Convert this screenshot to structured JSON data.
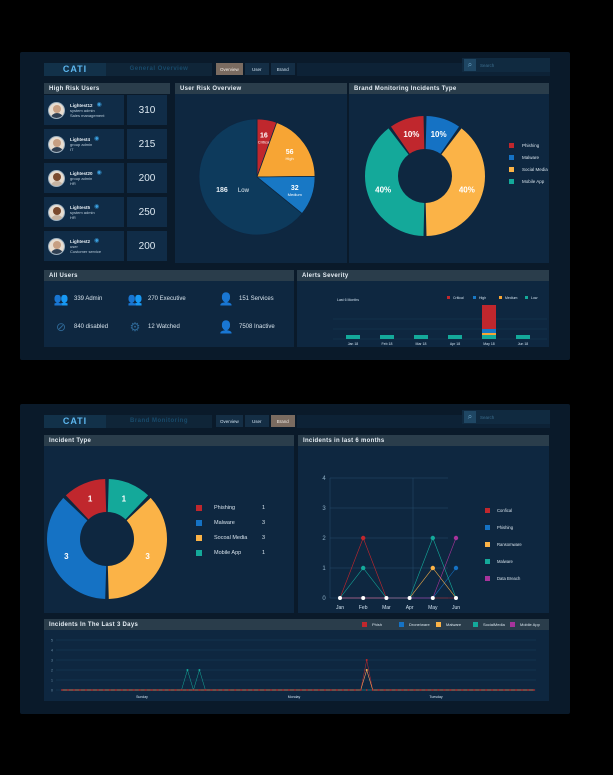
{
  "dashboard1": {
    "logo": "CATI",
    "subtitle": "General Overview",
    "tabs": [
      {
        "label": "Overview",
        "active": true
      },
      {
        "label": "User",
        "active": false
      },
      {
        "label": "Brand",
        "active": false
      }
    ],
    "search_placeholder": "Search",
    "high_risk_title": "High Risk Users",
    "users": [
      {
        "name": "Lightest12",
        "role": "system admin",
        "dept": "Sales management",
        "score": "310",
        "gender": "m"
      },
      {
        "name": "Lightest4",
        "role": "group admin",
        "dept": "IT",
        "score": "215",
        "gender": "m"
      },
      {
        "name": "Lightest20",
        "role": "group admin",
        "dept": "HR",
        "score": "200",
        "gender": "f"
      },
      {
        "name": "Lightest5",
        "role": "system admin",
        "dept": "HR",
        "score": "250",
        "gender": "f"
      },
      {
        "name": "Lightest2",
        "role": "user",
        "dept": "Customer service",
        "score": "200",
        "gender": "m"
      }
    ],
    "risk_title": "User Risk Overview",
    "risk_labels": [
      {
        "value": "16",
        "label": "Critical"
      },
      {
        "value": "56",
        "label": "High"
      },
      {
        "value": "32",
        "label": "Medium"
      },
      {
        "value": "186",
        "label": "Low"
      }
    ],
    "brand_title": "Brand Monitoring Incidents Type",
    "brand_labels": [
      "10%",
      "10%",
      "40%",
      "40%"
    ],
    "brand_legend": [
      "Phishing",
      "Malware",
      "Social Media",
      "Mobile App"
    ],
    "all_users_title": "All Users",
    "stats": [
      {
        "value": "339 Admin",
        "icon": "user-group-icon"
      },
      {
        "value": "270 Executive",
        "icon": "users-icon"
      },
      {
        "value": "151 Services",
        "icon": "service-user-icon"
      },
      {
        "value": "840 disabled",
        "icon": "disabled-user-icon"
      },
      {
        "value": "12 Watched",
        "icon": "watched-users-icon"
      },
      {
        "value": "7508 Inactive",
        "icon": "inactive-user-icon"
      }
    ],
    "alerts_title": "Alerts Severity",
    "alerts_period": "Last 6 Months",
    "alerts_legend": [
      "Critical",
      "High",
      "Medium",
      "Low"
    ],
    "alerts_months": [
      "Jan 18",
      "Feb 18",
      "Mar 18",
      "Apr 18",
      "May 18",
      "Jun 18"
    ]
  },
  "dashboard2": {
    "logo": "CATI",
    "subtitle": "Brand Monitoring",
    "tabs": [
      {
        "label": "Overview",
        "active": false
      },
      {
        "label": "User",
        "active": false
      },
      {
        "label": "Brand",
        "active": true
      }
    ],
    "search_placeholder": "Search",
    "incident_type_title": "Incident Type",
    "donut_labels": [
      "1",
      "1",
      "3",
      "3"
    ],
    "incident_legend": [
      {
        "label": "Phishing",
        "value": "1"
      },
      {
        "label": "Malware",
        "value": "3"
      },
      {
        "label": "Socoal Media",
        "value": "3"
      },
      {
        "label": "Mobile App",
        "value": "1"
      }
    ],
    "months_title": "Incidents in last 6 months",
    "months_legend": [
      "Confical",
      "Phishing",
      "Ransomware",
      "Malware",
      "Data Breach"
    ],
    "days_title": "Incidents In The Last 3 Days",
    "days_legend": [
      "Phish",
      "Drone/ware",
      "Malware",
      "SocialMedia",
      "Mobile App"
    ],
    "days_labels": [
      "Sunday",
      "Monday",
      "Tuesday"
    ]
  },
  "colors": {
    "critical": "#c0272d",
    "high": "#f7a534",
    "medium": "#1878c5",
    "low": "#0d3a5c",
    "phishing": "#c0272d",
    "malware": "#1572c4",
    "social": "#fbb347",
    "mobile": "#14a99a"
  },
  "chart_data": [
    {
      "type": "pie",
      "title": "User Risk Overview",
      "categories": [
        "Critical",
        "High",
        "Medium",
        "Low"
      ],
      "values": [
        16,
        56,
        32,
        186
      ]
    },
    {
      "type": "pie",
      "title": "Brand Monitoring Incidents Type",
      "categories": [
        "Phishing",
        "Malware",
        "Social Media",
        "Mobile App"
      ],
      "values": [
        10,
        10,
        40,
        40
      ]
    },
    {
      "type": "bar",
      "title": "Alerts Severity",
      "categories": [
        "Jan 18",
        "Feb 18",
        "Mar 18",
        "Apr 18",
        "May 18",
        "Jun 18"
      ],
      "series": [
        {
          "name": "Critical",
          "values": [
            0,
            0,
            0,
            0,
            12,
            0
          ]
        },
        {
          "name": "High",
          "values": [
            0,
            0,
            0,
            0,
            2,
            0
          ]
        },
        {
          "name": "Medium",
          "values": [
            0,
            0,
            0,
            0,
            1,
            0
          ]
        },
        {
          "name": "Low",
          "values": [
            2,
            2,
            2,
            2,
            2,
            2
          ]
        }
      ]
    },
    {
      "type": "pie",
      "title": "Incident Type",
      "categories": [
        "Phishing",
        "Malware",
        "Socoal Media",
        "Mobile App"
      ],
      "values": [
        1,
        3,
        3,
        1
      ]
    },
    {
      "type": "line",
      "title": "Incidents in last 6 months",
      "categories": [
        "Jan",
        "Feb",
        "Mar",
        "Apr",
        "May",
        "Jun"
      ],
      "ylim": [
        0,
        4
      ],
      "yticks": [
        0,
        1,
        2,
        3,
        4
      ],
      "series": [
        {
          "name": "Confical",
          "values": [
            0,
            2,
            0,
            0,
            0,
            0
          ]
        },
        {
          "name": "Phishing",
          "values": [
            0,
            0,
            0,
            0,
            0,
            1
          ]
        },
        {
          "name": "Ransomware",
          "values": [
            0,
            0,
            0,
            0,
            1,
            0
          ]
        },
        {
          "name": "Malware",
          "values": [
            0,
            1,
            0,
            0,
            2,
            0
          ]
        },
        {
          "name": "Data Breach",
          "values": [
            0,
            0,
            0,
            0,
            0,
            2
          ]
        }
      ]
    },
    {
      "type": "line",
      "title": "Incidents In The Last 3 Days",
      "categories": [
        "Sunday",
        "Monday",
        "Tuesday"
      ],
      "ylim": [
        0,
        5
      ],
      "yticks": [
        0,
        1,
        2,
        3,
        4,
        5
      ],
      "points_per_series": 80,
      "series": [
        {
          "name": "Malware",
          "spikes": [
            {
              "index": 21,
              "value": 2
            },
            {
              "index": 23,
              "value": 2
            }
          ]
        },
        {
          "name": "Mobile App",
          "spikes": [
            {
              "index": 51,
              "value": 2
            }
          ]
        },
        {
          "name": "Phish",
          "spikes": [
            {
              "index": 51,
              "value": 3
            }
          ]
        },
        {
          "name": "SocialMedia",
          "spikes": [
            {
              "index": 51,
              "value": 2
            }
          ]
        }
      ]
    }
  ]
}
